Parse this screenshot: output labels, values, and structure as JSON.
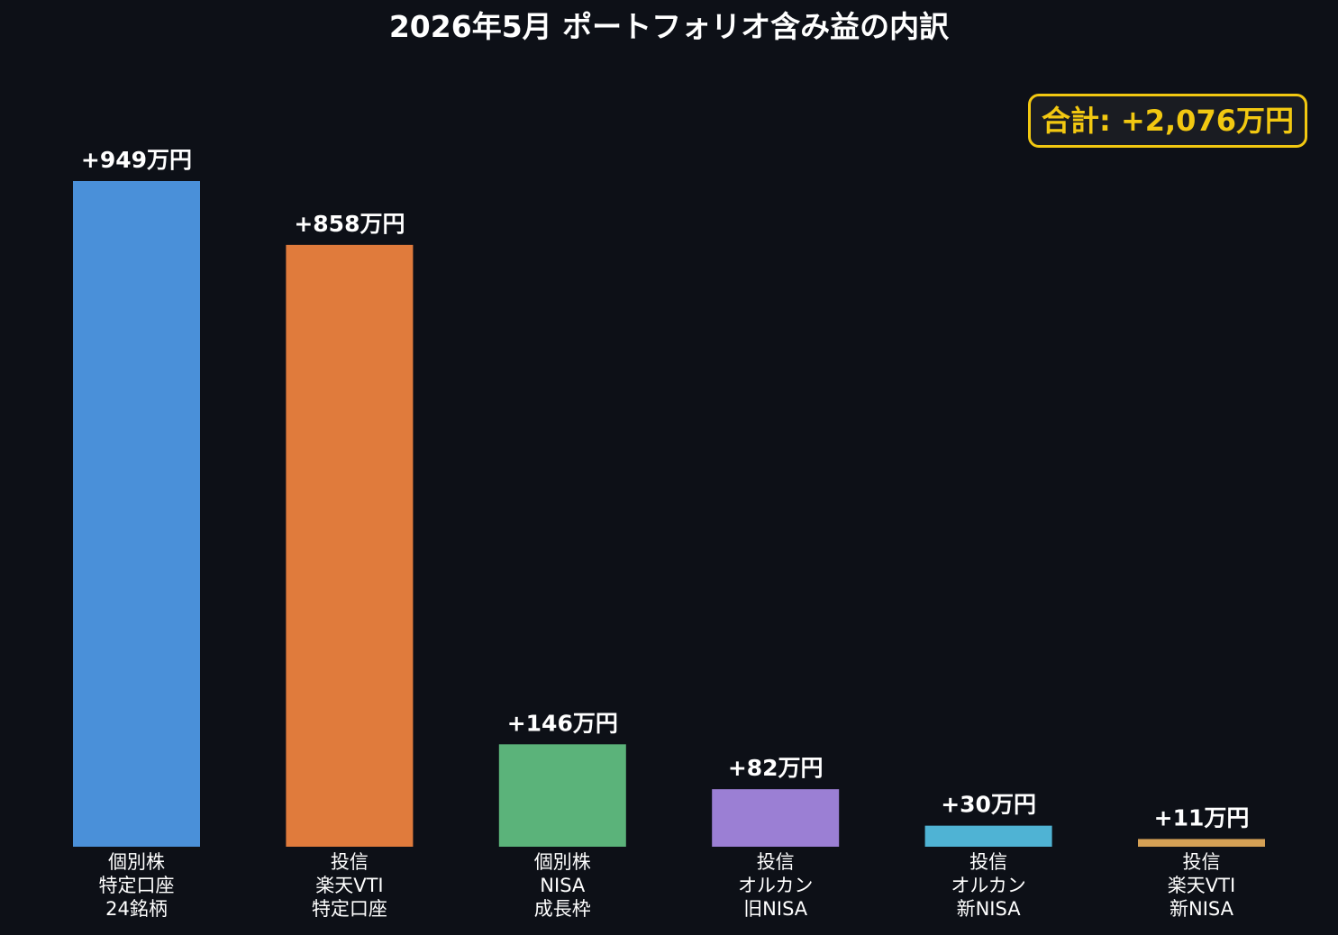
{
  "chart_data": {
    "type": "bar",
    "title": "2026年5月 ポートフォリオ含み益の内訳",
    "total_label": "合計: +2,076万円",
    "unit": "万円",
    "ylim": [
      0,
      949
    ],
    "grid": false,
    "categories": [
      [
        "個別株",
        "特定口座",
        "24銘柄"
      ],
      [
        "投信",
        "楽天VTI",
        "特定口座"
      ],
      [
        "個別株",
        "NISA",
        "成長枠"
      ],
      [
        "投信",
        "オルカン",
        "旧NISA"
      ],
      [
        "投信",
        "オルカン",
        "新NISA"
      ],
      [
        "投信",
        "楽天VTI",
        "新NISA"
      ]
    ],
    "values": [
      949,
      858,
      146,
      82,
      30,
      11
    ],
    "value_labels": [
      "+949万円",
      "+858万円",
      "+146万円",
      "+82万円",
      "+30万円",
      "+11万円"
    ],
    "colors": [
      "#4a90d9",
      "#e07b3c",
      "#5bb37a",
      "#9b7fd4",
      "#4fb3d4",
      "#d4a055"
    ]
  }
}
